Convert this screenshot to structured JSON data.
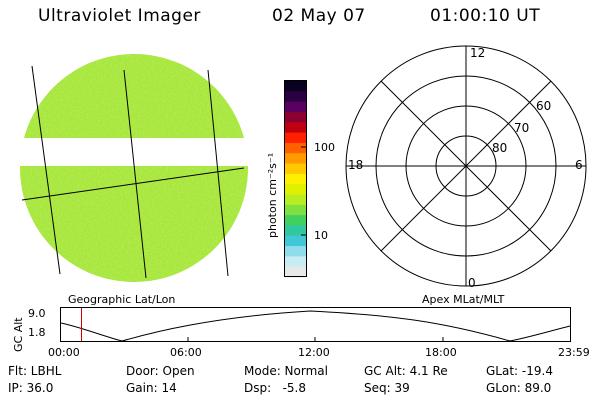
{
  "header": {
    "title": "Ultraviolet Imager",
    "date": "02 May 07",
    "time": "01:00:10 UT"
  },
  "colorbar": {
    "unit_label": "photon cm⁻²s⁻¹",
    "tick_labels": [
      "100",
      "10"
    ],
    "colors": [
      "#0a0020",
      "#2a0040",
      "#5a0060",
      "#8a0030",
      "#c00010",
      "#ff2000",
      "#ff6000",
      "#ff9a00",
      "#ffc800",
      "#fff000",
      "#e0f000",
      "#b8ee20",
      "#80e040",
      "#40d060",
      "#30c8a0",
      "#40c8d8",
      "#90dcec",
      "#c8ecf4",
      "#e8e8e8"
    ]
  },
  "projections": {
    "left_label": "Geographic Lat/Lon",
    "right_label": "Apex MLat/MLT"
  },
  "polar_plot": {
    "mlt_labels": {
      "top": "12",
      "left": "18",
      "right": "6",
      "bottom": "0"
    },
    "lat_labels": [
      "60",
      "70",
      "80"
    ]
  },
  "altitude_plot": {
    "ylabel": "GC Alt",
    "ytick_labels": [
      "9.0",
      "1.8"
    ],
    "xtick_labels": [
      "00:00",
      "06:00",
      "12:00",
      "18:00",
      "23:59"
    ],
    "current_marker_color": "#cc0000"
  },
  "info": {
    "flt": "Flt: LBHL",
    "ip": "IP: 36.0",
    "door": "Door: Open",
    "gain": "Gain: 14",
    "mode": "Mode: Normal",
    "dsp": "Dsp:   -5.8",
    "gcalt": "GC Alt: 4.1 Re",
    "seq": "Seq: 39",
    "glat": "GLat: -19.4",
    "glon": "GLon: 89.0"
  }
}
